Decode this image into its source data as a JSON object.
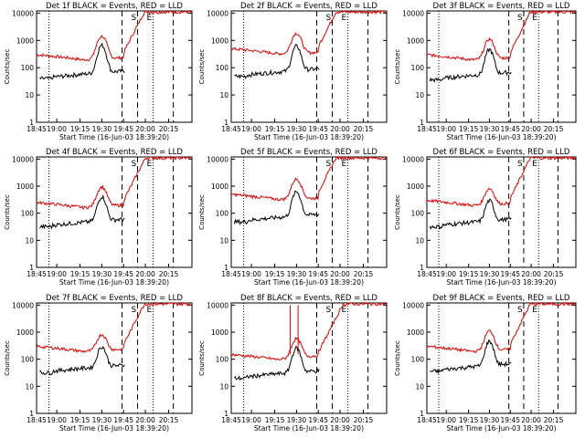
{
  "figure": {
    "title_template": "Det {d}f BLACK = Events, RED = LLD",
    "ylabel": "Counts/sec",
    "xlabel": "Start Time (16-Jun-03 18:39:20)",
    "colors": {
      "events": "#000000",
      "lld": "#e00000",
      "axes": "#000000"
    }
  },
  "chart_data": [
    {
      "type": "line",
      "title": "Det 1f BLACK = Events, RED = LLD",
      "detector": 1,
      "peak": 4,
      "lld_base": 300,
      "ev_base": 50,
      "spikes": []
    },
    {
      "type": "line",
      "title": "Det 2f BLACK = Events, RED = LLD",
      "detector": 2,
      "peak": 3,
      "lld_base": 500,
      "ev_base": 60,
      "spikes": []
    },
    {
      "type": "line",
      "title": "Det 3f BLACK = Events, RED = LLD",
      "detector": 3,
      "peak": 3,
      "lld_base": 300,
      "ev_base": 45,
      "spikes": []
    },
    {
      "type": "line",
      "title": "Det 4f BLACK = Events, RED = LLD",
      "detector": 4,
      "peak": 3,
      "lld_base": 250,
      "ev_base": 40,
      "spikes": []
    },
    {
      "type": "line",
      "title": "Det 5f BLACK = Events, RED = LLD",
      "detector": 5,
      "peak": 3,
      "lld_base": 500,
      "ev_base": 60,
      "spikes": []
    },
    {
      "type": "line",
      "title": "Det 6f BLACK = Events, RED = LLD",
      "detector": 6,
      "peak": 2,
      "lld_base": 300,
      "ev_base": 40,
      "spikes": []
    },
    {
      "type": "line",
      "title": "Det 7f BLACK = Events, RED = LLD",
      "detector": 7,
      "peak": 2,
      "lld_base": 300,
      "ev_base": 40,
      "spikes": []
    },
    {
      "type": "line",
      "title": "Det 8f BLACK = Events, RED = LLD",
      "detector": 8,
      "peak": 3,
      "lld_base": 150,
      "ev_base": 25,
      "spikes": [
        10000,
        10000
      ]
    },
    {
      "type": "line",
      "title": "Det 9f BLACK = Events, RED = LLD",
      "detector": 9,
      "peak": 3,
      "lld_base": 300,
      "ev_base": 45,
      "spikes": []
    }
  ],
  "axes": {
    "xlim_minutes": [
      0,
      100
    ],
    "xtick_labels": [
      "18:45",
      "19:00",
      "19:15",
      "19:30",
      "19:45",
      "20:00",
      "20:15"
    ],
    "xtick_minutes": [
      0,
      13,
      28,
      42,
      56,
      70,
      85
    ],
    "ytick_labels": [
      "1",
      "10",
      "100",
      "1000",
      "10000"
    ],
    "ylim": [
      1,
      12000
    ],
    "yscale": "log",
    "markers": [
      {
        "label": "S",
        "minute": 65,
        "style": "dashed"
      },
      {
        "label": "E",
        "minute": 75,
        "style": "dotted"
      }
    ],
    "extra_lines": [
      {
        "minute": 8,
        "style": "dotted"
      },
      {
        "minute": 55,
        "style": "dashed"
      },
      {
        "minute": 88,
        "style": "dashed"
      }
    ]
  }
}
